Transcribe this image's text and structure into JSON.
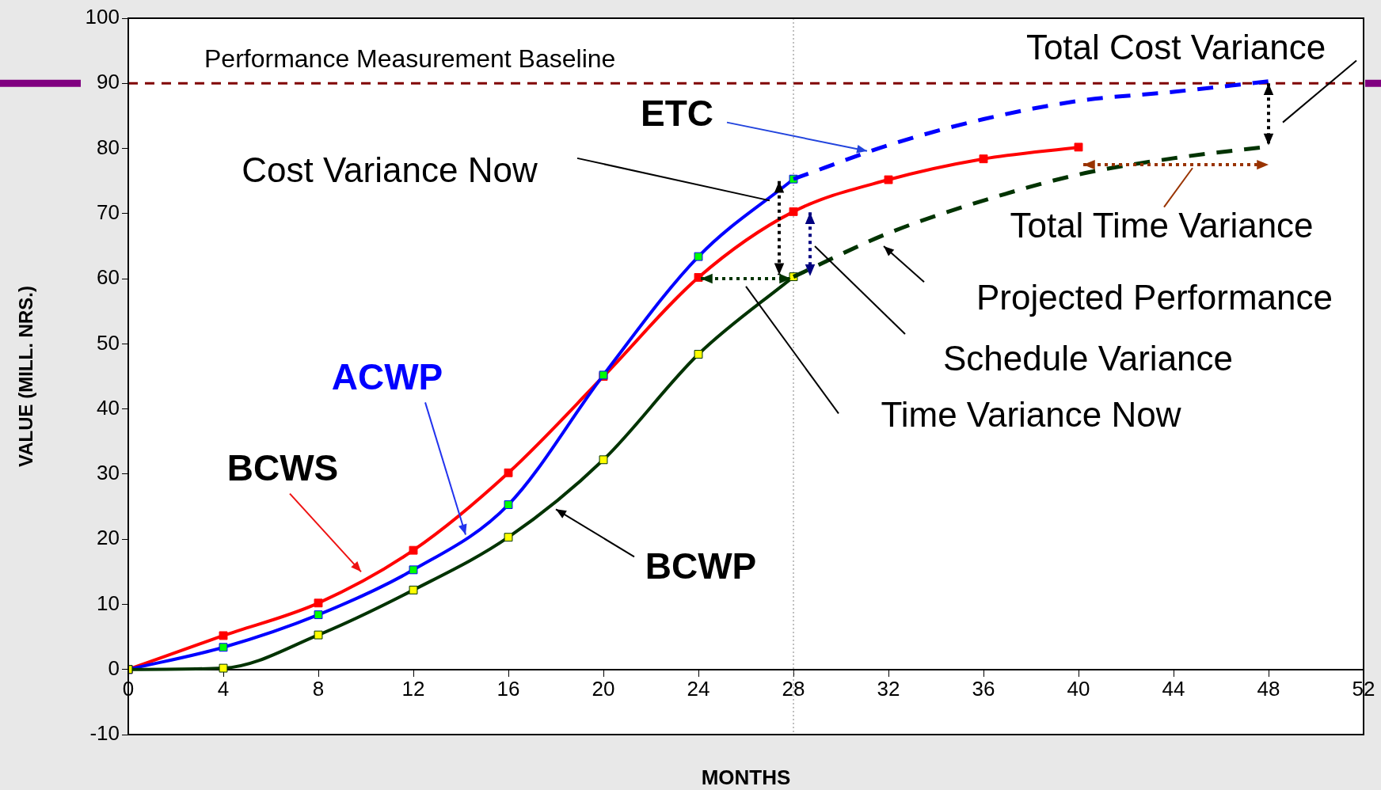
{
  "chart_data": {
    "type": "line",
    "xlabel": "MONTHS",
    "ylabel": "VALUE (MILL. NRS.)",
    "xlim": [
      0,
      52
    ],
    "xticks": [
      0,
      4,
      8,
      12,
      16,
      20,
      24,
      28,
      32,
      36,
      40,
      44,
      48,
      52
    ],
    "ylim": [
      -10,
      100
    ],
    "yticks": [
      -10,
      0,
      10,
      20,
      30,
      40,
      50,
      60,
      70,
      80,
      90,
      100
    ],
    "grid": false,
    "legend": false,
    "marker": "square",
    "line_style": "solid",
    "series": [
      {
        "name": "BCWS",
        "color": "#ff0000",
        "x": [
          0,
          4,
          8,
          12,
          16,
          20,
          24,
          28,
          32,
          36,
          40
        ],
        "values": [
          0,
          5.2,
          10.2,
          18.3,
          30.2,
          45,
          60.2,
          70.3,
          75.2,
          78.4,
          80.2
        ]
      },
      {
        "name": "ACWP",
        "color": "#0000ff",
        "colors": [
          "#00ff00",
          "#00ff00",
          "#00ff00",
          "#00ff00",
          "#00ff00",
          "#00ff00",
          "#00ff00",
          "#00ff00"
        ],
        "x": [
          0,
          4,
          8,
          12,
          16,
          20,
          24,
          28
        ],
        "values": [
          0,
          3.4,
          8.4,
          15.3,
          25.3,
          45.2,
          63.4,
          75.3
        ]
      },
      {
        "name": "BCWP",
        "color": "#003300",
        "colors": [
          "#ffff00",
          "#ffff00",
          "#ffff00",
          "#ffff00",
          "#ffff00",
          "#ffff00",
          "#ffff00",
          "#ffff00"
        ],
        "x": [
          0,
          4,
          8,
          12,
          16,
          20,
          24,
          28
        ],
        "values": [
          0,
          0.2,
          5.3,
          12.2,
          20.3,
          32.2,
          48.4,
          60.3
        ]
      },
      {
        "name": "ETC",
        "color": "#0000ff",
        "line_style": "dashed",
        "marker": "none",
        "x": [
          28,
          32,
          36,
          40,
          44,
          48
        ],
        "values": [
          75.3,
          80.5,
          84.5,
          87.3,
          88.7,
          90.3
        ]
      },
      {
        "name": "Projected Performance",
        "color": "#003300",
        "line_style": "dashed",
        "marker": "none",
        "x": [
          28,
          32,
          36,
          40,
          44,
          48
        ],
        "values": [
          60.3,
          67,
          72,
          76,
          78.5,
          80.3
        ]
      }
    ],
    "ref_lines": [
      {
        "axis": "y",
        "value": 90,
        "label": "Performance Measurement Baseline",
        "color": "#800000",
        "line_style": "dashed"
      },
      {
        "axis": "x",
        "value": 28,
        "label": null,
        "color": "#808080",
        "line_style": "dotted"
      }
    ],
    "annotations": [
      "Total Cost Variance",
      "Total Time Variance",
      {
        "text": "Cost Variance Now",
        "x": 27,
        "y": 72
      },
      "Schedule Variance",
      "Time Variance Now"
    ]
  }
}
